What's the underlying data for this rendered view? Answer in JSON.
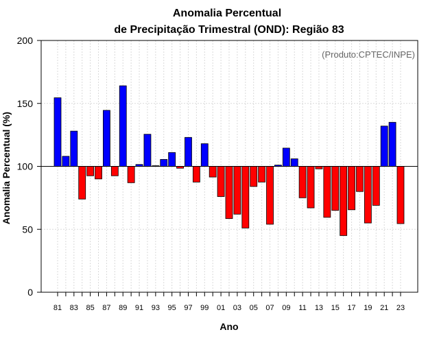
{
  "chart_data": {
    "type": "bar",
    "title_line1": "Anomalia Percentual",
    "title_line2": "de Precipitação Trimestral (OND): Região 83",
    "credit": "(Produto:CPTEC/INPE)",
    "xlabel": "Ano",
    "ylabel": "Anomalia Percentual (%)",
    "ylim": [
      0,
      200
    ],
    "yticks": [
      0,
      50,
      100,
      150,
      200
    ],
    "baseline": 100,
    "grid": true,
    "colors": {
      "above": "#0000ff",
      "below": "#ff0000",
      "outline": "#000000",
      "grid": "#d9d9d9"
    },
    "categories": [
      "81",
      "82",
      "83",
      "84",
      "85",
      "86",
      "87",
      "88",
      "89",
      "90",
      "91",
      "92",
      "93",
      "94",
      "95",
      "96",
      "97",
      "98",
      "99",
      "00",
      "01",
      "02",
      "03",
      "04",
      "05",
      "06",
      "07",
      "08",
      "09",
      "10",
      "11",
      "12",
      "13",
      "14",
      "15",
      "16",
      "17",
      "18",
      "19",
      "20",
      "21",
      "22",
      "23"
    ],
    "tick_labels": [
      "81",
      "83",
      "85",
      "87",
      "89",
      "91",
      "93",
      "95",
      "97",
      "99",
      "01",
      "03",
      "05",
      "07",
      "09",
      "11",
      "13",
      "15",
      "17",
      "19",
      "21",
      "23"
    ],
    "values": [
      154.5,
      108,
      128,
      74,
      92.5,
      90,
      144.5,
      92.5,
      164,
      87,
      101.5,
      125.5,
      100.5,
      105.5,
      111,
      98.5,
      123,
      87.5,
      118,
      91.5,
      76,
      58.5,
      62,
      51,
      84,
      87.5,
      54,
      101,
      114.5,
      106,
      75,
      67,
      98,
      59.5,
      65,
      45,
      65.5,
      80,
      55,
      69,
      132,
      135,
      54.5
    ]
  }
}
